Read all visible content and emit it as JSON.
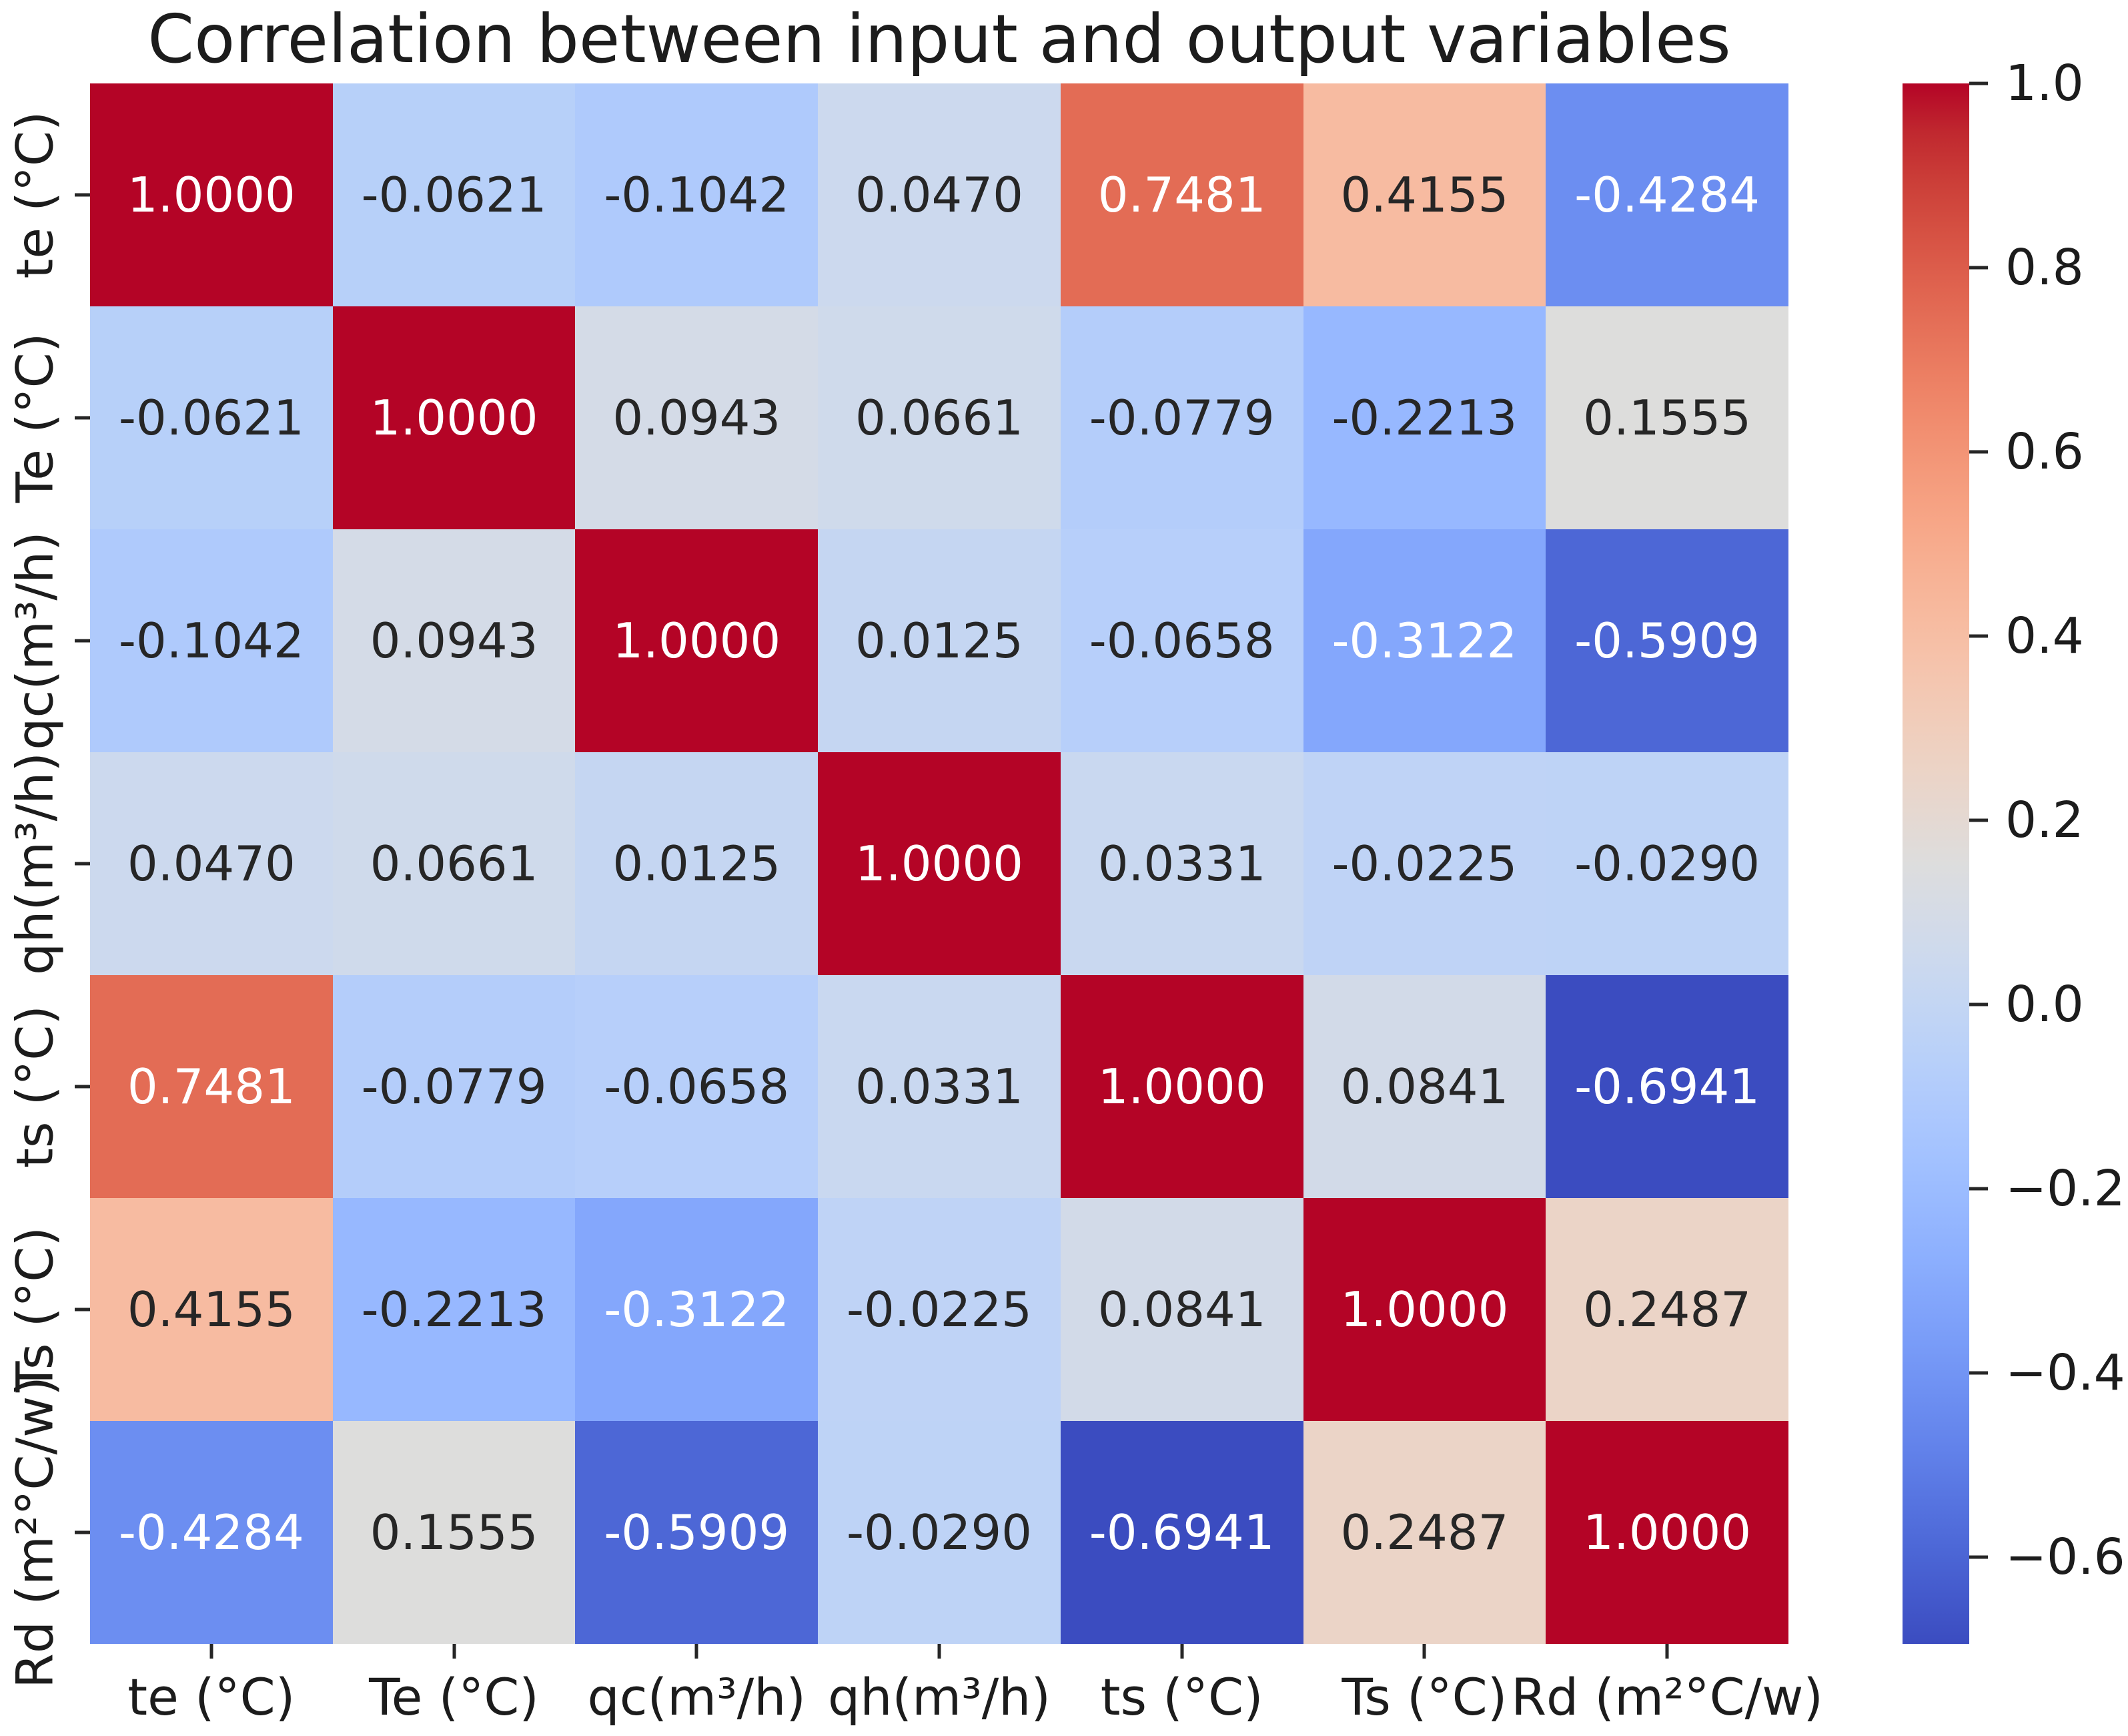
{
  "chart_data": {
    "type": "heatmap",
    "title": "Correlation between input and output variables",
    "variables": [
      "te (°C)",
      "Te (°C)",
      "qc(m³/h)",
      "qh(m³/h)",
      "ts (°C)",
      "Ts (°C)",
      "Rd (m²°C/w)"
    ],
    "matrix": [
      [
        1.0,
        -0.0621,
        -0.1042,
        0.047,
        0.7481,
        0.4155,
        -0.4284
      ],
      [
        -0.0621,
        1.0,
        0.0943,
        0.0661,
        -0.0779,
        -0.2213,
        0.1555
      ],
      [
        -0.1042,
        0.0943,
        1.0,
        0.0125,
        -0.0658,
        -0.3122,
        -0.5909
      ],
      [
        0.047,
        0.0661,
        0.0125,
        1.0,
        0.0331,
        -0.0225,
        -0.029
      ],
      [
        0.7481,
        -0.0779,
        -0.0658,
        0.0331,
        1.0,
        0.0841,
        -0.6941
      ],
      [
        0.4155,
        -0.2213,
        -0.3122,
        -0.0225,
        0.0841,
        1.0,
        0.2487
      ],
      [
        -0.4284,
        0.1555,
        -0.5909,
        -0.029,
        -0.6941,
        0.2487,
        1.0
      ]
    ],
    "value_decimals": 4,
    "colormap": "coolwarm",
    "vmin": -0.6941,
    "vmax": 1.0,
    "colorbar_ticks": [
      1.0,
      0.8,
      0.6,
      0.4,
      0.2,
      0.0,
      -0.2,
      -0.4,
      -0.6
    ],
    "colorbar_position": "right",
    "annotation_text_colors": {
      "dark": "#262626",
      "light": "#ffffff"
    },
    "grid": false
  }
}
